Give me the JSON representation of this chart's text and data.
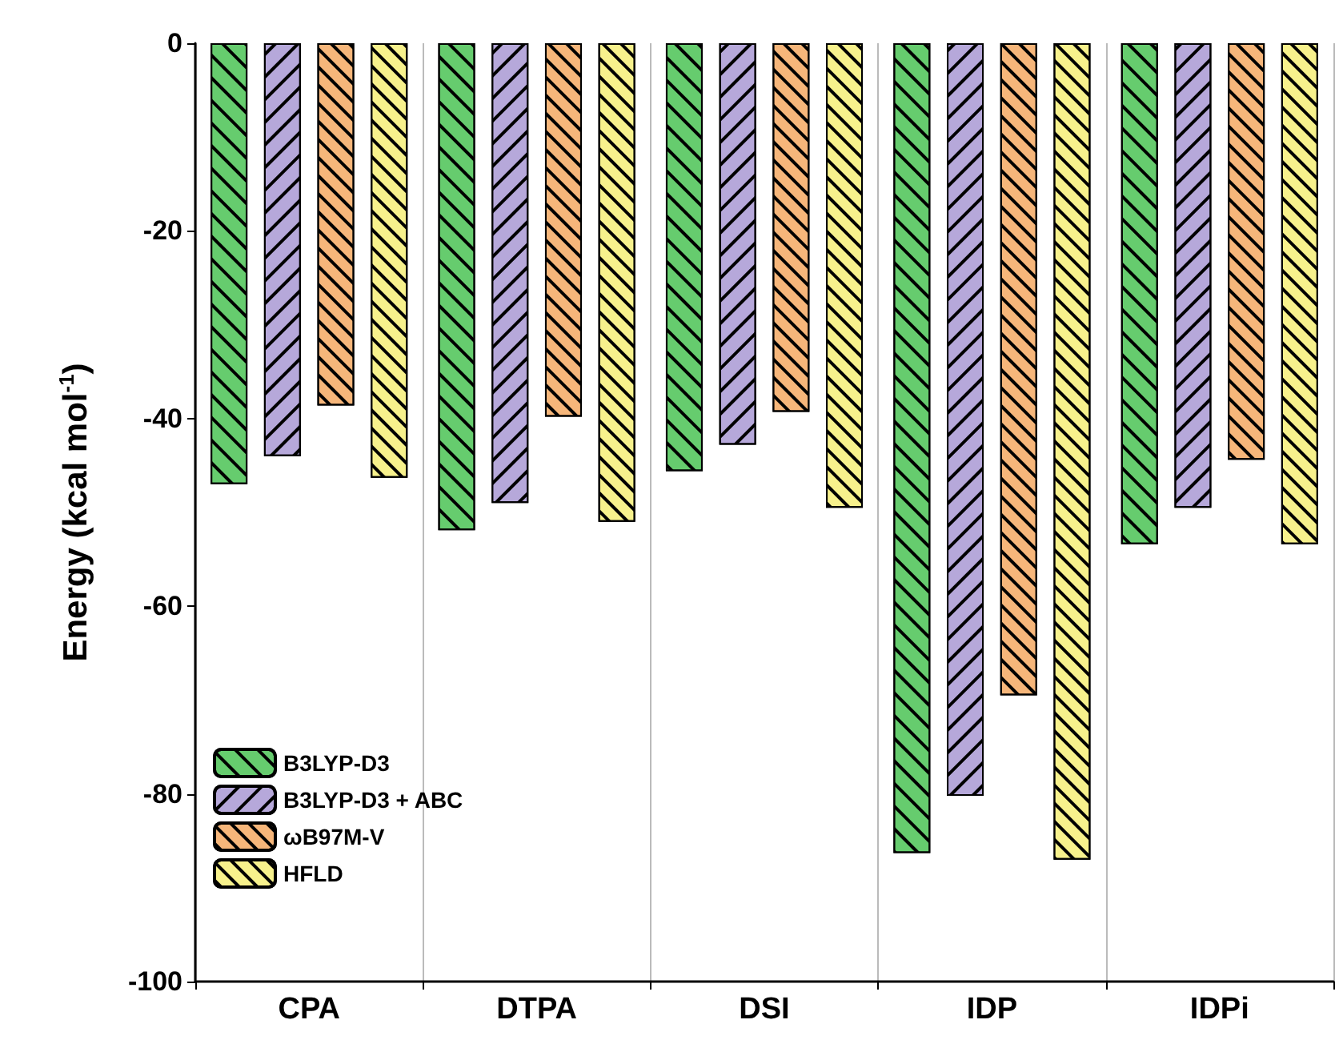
{
  "chart_data": {
    "type": "bar",
    "ylabel": "Energy (kcal mol$^{-1}$)",
    "categories": [
      "CPA",
      "DTPA",
      "DSI",
      "IDP",
      "IDPi"
    ],
    "series": [
      {
        "name": "B3LYP-D3",
        "color": "#66cc6e",
        "values": [
          -47,
          -51.9,
          -45.6,
          -86.3,
          -53.4
        ]
      },
      {
        "name": "B3LYP-D3 + ABC",
        "color": "#b6a8da",
        "values": [
          -44,
          -49,
          -42.8,
          -80.2,
          -49.5
        ]
      },
      {
        "name": "ωB97M-V",
        "color": "#f6b67a",
        "values": [
          -38.6,
          -39.8,
          -39.3,
          -69.5,
          -44.4
        ]
      },
      {
        "name": "HFLD",
        "color": "#f7f18c",
        "values": [
          -46.3,
          -51,
          -49.5,
          -87,
          -53.4
        ]
      }
    ],
    "ylim": [
      -100,
      0
    ],
    "yticks": [
      -100,
      -80,
      -60,
      -40,
      -20,
      0
    ],
    "grid": "x",
    "legend": "bottom left"
  }
}
